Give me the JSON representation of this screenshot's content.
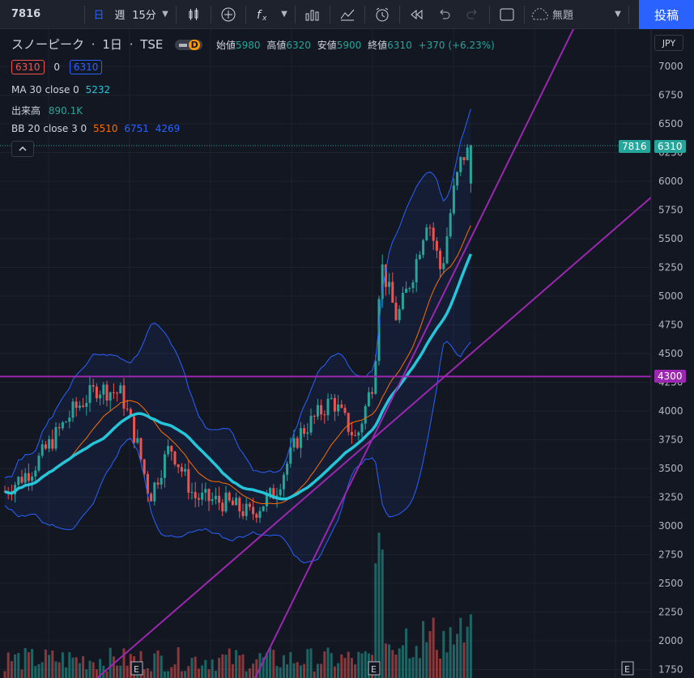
{
  "toolbar": {
    "symbol": "7816",
    "interval_day": "日",
    "interval_week": "週",
    "interval_15m": "15分",
    "layout_name": "無題",
    "post_button": "投稿"
  },
  "legend": {
    "name": "スノーピーク",
    "timeframe": "1日",
    "exchange": "TSE",
    "badge_d": "D",
    "open_label": "始値",
    "open": "5980",
    "high_label": "高値",
    "high": "6320",
    "low_label": "安値",
    "low": "5900",
    "close_label": "終値",
    "close": "6310",
    "change": "+370 (+6.23%)",
    "bid": "6310",
    "spread": "0",
    "ask": "6310",
    "ma_label": "MA 30 close 0",
    "ma_value": "5232",
    "volume_label": "出来高",
    "volume_value": "890.1K",
    "bb_label": "BB 20 close 3 0",
    "bb_mid": "5510",
    "bb_upper": "6751",
    "bb_lower": "4269"
  },
  "axis": {
    "currency": "JPY",
    "ticks": [
      "7000",
      "6750",
      "6500",
      "6250",
      "6000",
      "5750",
      "5500",
      "5250",
      "5000",
      "4750",
      "4500",
      "4250",
      "4000",
      "3750",
      "3500",
      "3250",
      "3000",
      "2750",
      "2500",
      "2250",
      "2000",
      "1750"
    ],
    "ymin": 1750,
    "ymax": 7000,
    "last_symbol_tag": "7816",
    "last_price_tag": "6310",
    "line_price_tag": "4300",
    "earnings_marker": "E"
  },
  "colors": {
    "up": "#26a69a",
    "down": "#ef5350",
    "ma": "#26c6da",
    "bb_mid": "#ff6d00",
    "bb_band": "#2962ff",
    "drawing": "#9c27b0",
    "bg": "#131722"
  }
}
